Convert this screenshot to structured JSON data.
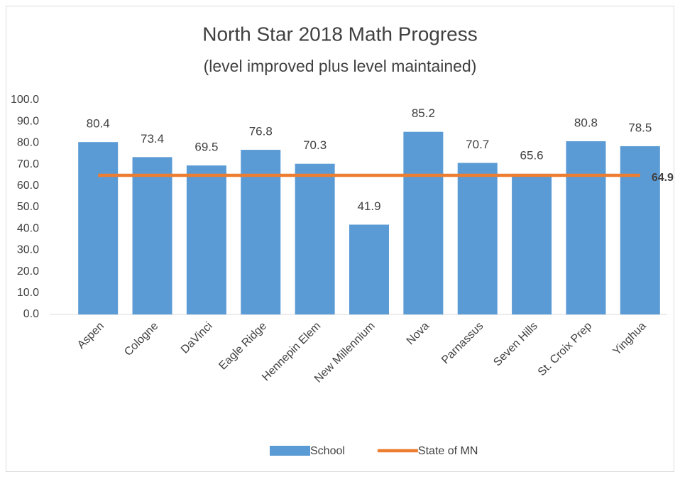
{
  "chart_data": {
    "type": "bar",
    "title": "North Star 2018 Math Progress",
    "subtitle": "(level improved plus level maintained)",
    "categories": [
      "Aspen",
      "Cologne",
      "DaVinci",
      "Eagle Ridge",
      "Hennepin Elem",
      "New Millennium",
      "Nova",
      "Parnassus",
      "Seven Hills",
      "St. Croix Prep",
      "Yinghua"
    ],
    "series": [
      {
        "name": "School",
        "type": "bar",
        "color": "#5b9bd5",
        "values": [
          80.4,
          73.4,
          69.5,
          76.8,
          70.3,
          41.9,
          85.2,
          70.7,
          65.6,
          80.8,
          78.5
        ]
      },
      {
        "name": "State of MN",
        "type": "line",
        "color": "#ed7d31",
        "values": [
          64.9,
          64.9,
          64.9,
          64.9,
          64.9,
          64.9,
          64.9,
          64.9,
          64.9,
          64.9,
          64.9
        ]
      }
    ],
    "line_label": 64.9,
    "ylim": [
      0,
      100
    ],
    "yticks": [
      {
        "value": 0,
        "label": "0.0"
      },
      {
        "value": 10,
        "label": "10.0"
      },
      {
        "value": 20,
        "label": "20.0"
      },
      {
        "value": 30,
        "label": "30.0"
      },
      {
        "value": 40,
        "label": "40.0"
      },
      {
        "value": 50,
        "label": "50.0"
      },
      {
        "value": 60,
        "label": "60.0"
      },
      {
        "value": 70,
        "label": "70.0"
      },
      {
        "value": 80,
        "label": "80.0"
      },
      {
        "value": 90,
        "label": "90.0"
      },
      {
        "value": 100,
        "label": "100.0"
      }
    ],
    "grid": false,
    "legend": "bottom"
  }
}
